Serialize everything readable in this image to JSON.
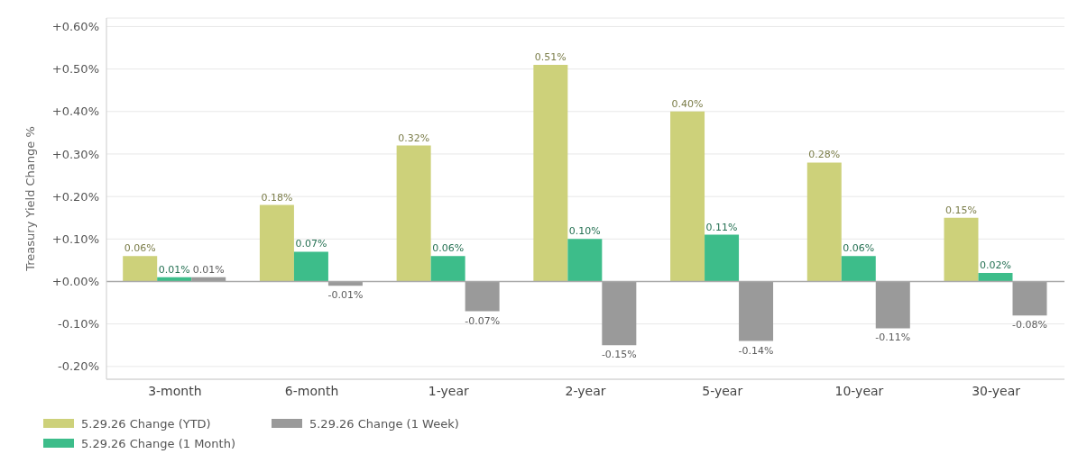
{
  "chart_data": {
    "type": "bar",
    "ylabel": "Treasury Yield Change %",
    "categories": [
      "3-month",
      "6-month",
      "1-year",
      "2-year",
      "5-year",
      "10-year",
      "30-year"
    ],
    "series": [
      {
        "name": "5.29.26 Change (YTD)",
        "color": "#cdd17a",
        "values": [
          0.06,
          0.18,
          0.32,
          0.51,
          0.4,
          0.28,
          0.15
        ],
        "value_labels": [
          "0.06%",
          "0.18%",
          "0.32%",
          "0.51%",
          "0.40%",
          "0.28%",
          "0.15%"
        ]
      },
      {
        "name": "5.29.26 Change (1 Month)",
        "color": "#3dbd8a",
        "values": [
          0.01,
          0.07,
          0.06,
          0.1,
          0.11,
          0.06,
          0.02
        ],
        "value_labels": [
          "0.01%",
          "0.07%",
          "0.06%",
          "0.10%",
          "0.11%",
          "0.06%",
          "0.02%"
        ]
      },
      {
        "name": "5.29.26 Change (1 Week)",
        "color": "#9a9a9a",
        "values": [
          0.01,
          -0.01,
          -0.07,
          -0.15,
          -0.14,
          -0.11,
          -0.08
        ],
        "value_labels": [
          "0.01%",
          "-0.01%",
          "-0.07%",
          "-0.15%",
          "-0.14%",
          "-0.11%",
          "-0.08%"
        ]
      }
    ],
    "ylim": [
      -0.23,
      0.62
    ],
    "yticks": [
      {
        "value": -0.2,
        "label": "-0.20%"
      },
      {
        "value": -0.1,
        "label": "-0.10%"
      },
      {
        "value": 0,
        "label": "+0.00%"
      },
      {
        "value": 0.1,
        "label": "+0.10%"
      },
      {
        "value": 0.2,
        "label": "+0.20%"
      },
      {
        "value": 0.3,
        "label": "+0.30%"
      },
      {
        "value": 0.4,
        "label": "+0.40%"
      },
      {
        "value": 0.5,
        "label": "+0.50%"
      },
      {
        "value": 0.6,
        "label": "+0.60%"
      }
    ],
    "ref_lines": [
      {
        "axis": "y",
        "value": 0,
        "color": "#aaaaaa"
      }
    ],
    "grid": "y",
    "legend": "bottom left"
  }
}
